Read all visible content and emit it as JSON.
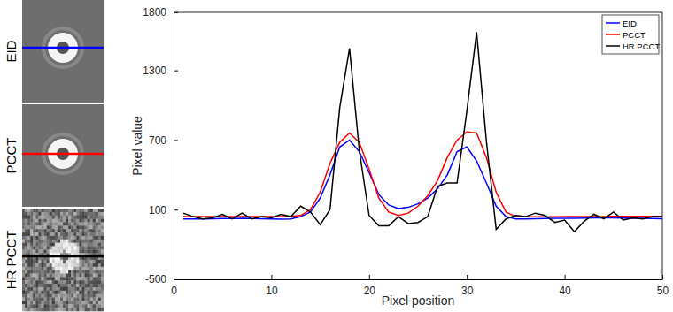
{
  "chart_data": {
    "type": "line",
    "xlabel": "Pixel position",
    "ylabel": "Pixel value",
    "x": [
      1,
      2,
      3,
      4,
      5,
      6,
      7,
      8,
      9,
      10,
      11,
      12,
      13,
      14,
      15,
      16,
      17,
      18,
      19,
      20,
      21,
      22,
      23,
      24,
      25,
      26,
      27,
      28,
      29,
      30,
      31,
      32,
      33,
      34,
      35,
      36,
      37,
      38,
      39,
      40,
      41,
      42,
      43,
      44,
      45,
      46,
      47,
      48,
      49,
      50
    ],
    "series": [
      {
        "name": "EID",
        "color": "#0000ff",
        "values": [
          20,
          20,
          20,
          22,
          24,
          24,
          25,
          24,
          22,
          20,
          18,
          20,
          40,
          80,
          200,
          400,
          640,
          700,
          600,
          420,
          230,
          140,
          110,
          120,
          150,
          200,
          280,
          400,
          600,
          640,
          520,
          330,
          130,
          40,
          20,
          20,
          22,
          24,
          25,
          25,
          26,
          28,
          30,
          30,
          30,
          28,
          26,
          25,
          24,
          22
        ]
      },
      {
        "name": "PCCT",
        "color": "#ff0000",
        "values": [
          40,
          40,
          40,
          40,
          40,
          40,
          40,
          40,
          40,
          40,
          40,
          42,
          50,
          100,
          250,
          500,
          680,
          760,
          680,
          450,
          200,
          80,
          50,
          70,
          130,
          220,
          350,
          550,
          700,
          770,
          760,
          550,
          250,
          80,
          40,
          38,
          38,
          38,
          38,
          40,
          40,
          40,
          40,
          40,
          42,
          42,
          42,
          42,
          42,
          42
        ]
      },
      {
        "name": "HR PCCT",
        "color": "#000000",
        "values": [
          70,
          40,
          20,
          30,
          60,
          20,
          70,
          20,
          40,
          30,
          60,
          40,
          130,
          80,
          -30,
          100,
          980,
          1490,
          610,
          50,
          -40,
          -40,
          40,
          -20,
          -10,
          40,
          300,
          330,
          330,
          950,
          1630,
          690,
          -70,
          20,
          50,
          40,
          70,
          50,
          -10,
          10,
          -90,
          0,
          60,
          20,
          80,
          10,
          30,
          20,
          40,
          40
        ]
      }
    ],
    "xlim": [
      0,
      50
    ],
    "xticks": [
      0,
      10,
      20,
      30,
      40,
      50
    ],
    "ylim": [
      -500,
      1800
    ],
    "yticks": [
      -500,
      100,
      700,
      1300,
      1800
    ],
    "grid": false,
    "legend": "top-right"
  }
}
